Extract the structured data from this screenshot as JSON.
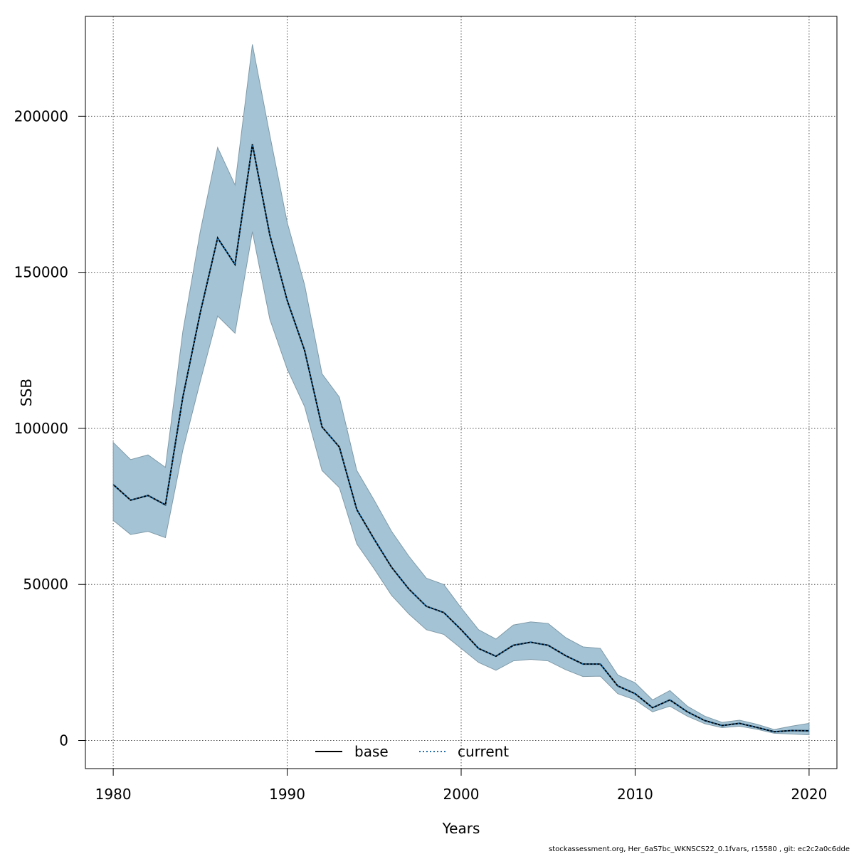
{
  "chart_data": {
    "type": "line",
    "xlabel": "Years",
    "ylabel": "SSB",
    "xlim": [
      1978.4,
      2021.6
    ],
    "ylim": [
      -9000,
      232000
    ],
    "grid": true,
    "x_ticks": [
      1980,
      1990,
      2000,
      2010,
      2020
    ],
    "x_tick_labels": [
      "1980",
      "1990",
      "2000",
      "2010",
      "2020"
    ],
    "y_ticks": [
      0,
      50000,
      100000,
      150000,
      200000
    ],
    "y_tick_labels": [
      "0",
      "50000",
      "100000",
      "150000",
      "200000"
    ],
    "x": [
      1980,
      1981,
      1982,
      1983,
      1984,
      1985,
      1986,
      1987,
      1988,
      1989,
      1990,
      1991,
      1992,
      1993,
      1994,
      1995,
      1996,
      1997,
      1998,
      1999,
      2000,
      2001,
      2002,
      2003,
      2004,
      2005,
      2006,
      2007,
      2008,
      2009,
      2010,
      2011,
      2012,
      2013,
      2014,
      2015,
      2016,
      2017,
      2018,
      2019,
      2020
    ],
    "band": {
      "color": "#a4c4d6",
      "lower": [
        70500,
        66000,
        67000,
        65000,
        93000,
        115000,
        136000,
        130500,
        163000,
        135000,
        119000,
        107000,
        86500,
        81000,
        63000,
        55000,
        46500,
        40500,
        35500,
        34000,
        29500,
        25000,
        22500,
        25500,
        26000,
        25500,
        22700,
        20500,
        20600,
        15000,
        13000,
        9200,
        11000,
        7800,
        5400,
        4100,
        4600,
        3600,
        2300,
        2100,
        1800
      ],
      "upper": [
        95500,
        90000,
        91500,
        87500,
        131000,
        163000,
        190000,
        178000,
        223000,
        194000,
        166000,
        146000,
        117500,
        110000,
        86500,
        77000,
        67000,
        59000,
        52000,
        50000,
        42500,
        35500,
        32500,
        37000,
        38000,
        37500,
        33000,
        30000,
        29500,
        21000,
        18500,
        13000,
        16000,
        11000,
        7800,
        5800,
        6500,
        5200,
        3500,
        4600,
        5500
      ]
    },
    "series": [
      {
        "name": "base",
        "color": "#000000",
        "dash": "solid",
        "values": [
          82000,
          77000,
          78500,
          75500,
          110000,
          137000,
          161000,
          152500,
          191000,
          162000,
          141000,
          125000,
          100500,
          94000,
          74000,
          64500,
          55500,
          48500,
          43000,
          41000,
          35500,
          29500,
          27000,
          30500,
          31500,
          30500,
          27200,
          24500,
          24500,
          17500,
          15000,
          10500,
          13000,
          9200,
          6400,
          4800,
          5500,
          4200,
          2800,
          3200,
          3100
        ]
      },
      {
        "name": "current",
        "color": "#1f6ea8",
        "dash": "dotted",
        "values": [
          82000,
          77000,
          78500,
          75500,
          110000,
          137000,
          161000,
          152500,
          191000,
          162000,
          141000,
          125000,
          100500,
          94000,
          74000,
          64500,
          55500,
          48500,
          43000,
          41000,
          35500,
          29500,
          27000,
          30500,
          31500,
          30500,
          27200,
          24500,
          24500,
          17500,
          15000,
          10500,
          13000,
          9200,
          6400,
          4800,
          5500,
          4200,
          2800,
          3200,
          3100
        ]
      }
    ],
    "legend_placement": "bottom-center"
  },
  "footer_text": "stockassessment.org, Her_6aS7bc_WKNSCS22_0.1fvars, r15580 , git: ec2c2a0c6dde"
}
